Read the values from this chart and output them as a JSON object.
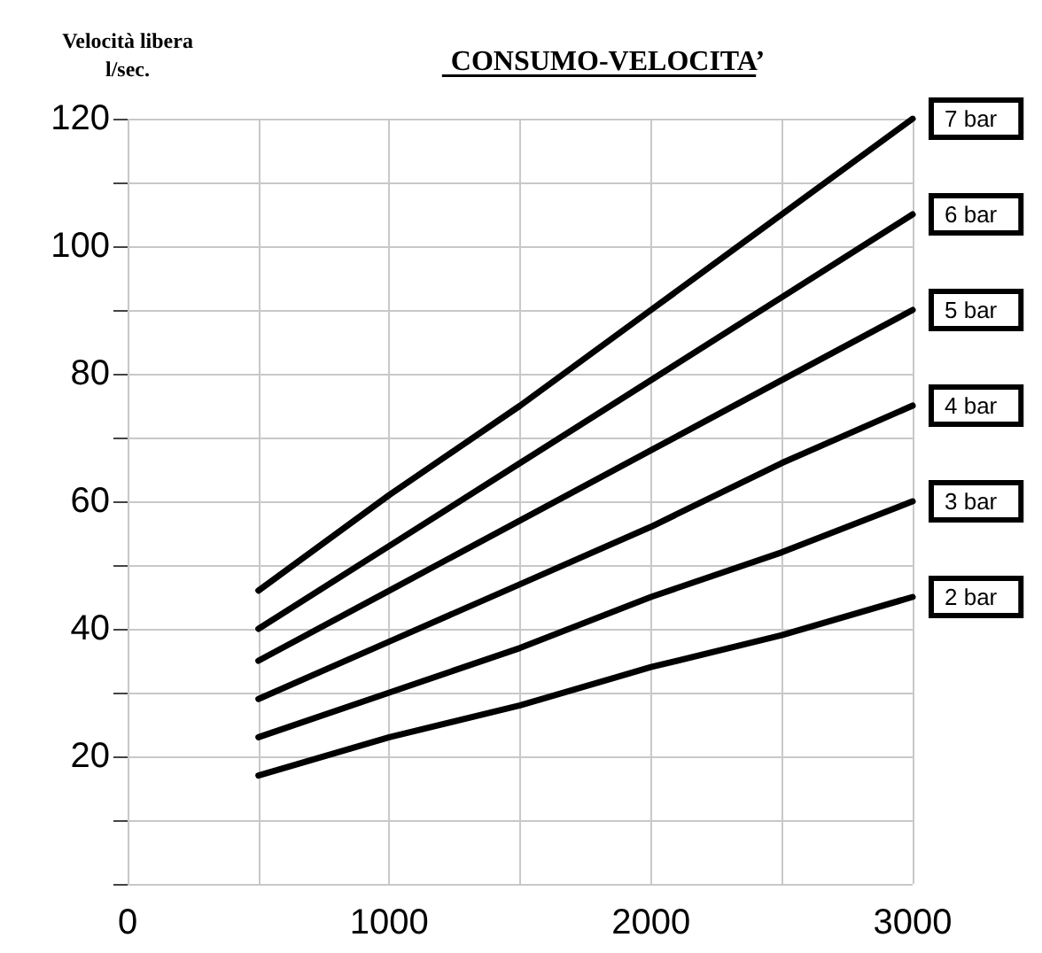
{
  "chart_data": {
    "type": "line",
    "title": "CONSUMO-VELOCITA’",
    "ylabel": "Velocità libera\nl/sec.",
    "x": [
      500,
      1000,
      1500,
      2000,
      2500,
      3000
    ],
    "series": [
      {
        "name": "7 bar",
        "color": "#000000",
        "values": [
          46,
          61,
          75,
          90,
          105,
          120
        ]
      },
      {
        "name": "6 bar",
        "color": "#000000",
        "values": [
          40,
          53,
          66,
          79,
          92,
          105
        ]
      },
      {
        "name": "5 bar",
        "color": "#000000",
        "values": [
          35,
          46,
          57,
          68,
          79,
          90
        ]
      },
      {
        "name": "4 bar",
        "color": "#000000",
        "values": [
          29,
          38,
          47,
          56,
          66,
          75
        ]
      },
      {
        "name": "3 bar",
        "color": "#000000",
        "values": [
          23,
          30,
          37,
          45,
          52,
          60
        ]
      },
      {
        "name": "2 bar",
        "color": "#000000",
        "values": [
          17,
          23,
          28,
          34,
          39,
          45
        ]
      }
    ],
    "xlim": [
      0,
      3000
    ],
    "xticks": [
      0,
      {
        "value": 500,
        "label": null
      },
      1000,
      {
        "value": 1500,
        "label": null
      },
      2000,
      {
        "value": 2500,
        "label": null
      },
      3000
    ],
    "ylim": [
      0,
      120
    ],
    "yticks": [
      {
        "value": 0,
        "label": null
      },
      {
        "value": 10,
        "label": null
      },
      20,
      {
        "value": 30,
        "label": null
      },
      40,
      {
        "value": 50,
        "label": null
      },
      60,
      {
        "value": 70,
        "label": null
      },
      80,
      {
        "value": 90,
        "label": null
      },
      100,
      {
        "value": 110,
        "label": null
      },
      120
    ],
    "grid": true,
    "legend": false,
    "marker": "none",
    "line_style": "solid"
  }
}
